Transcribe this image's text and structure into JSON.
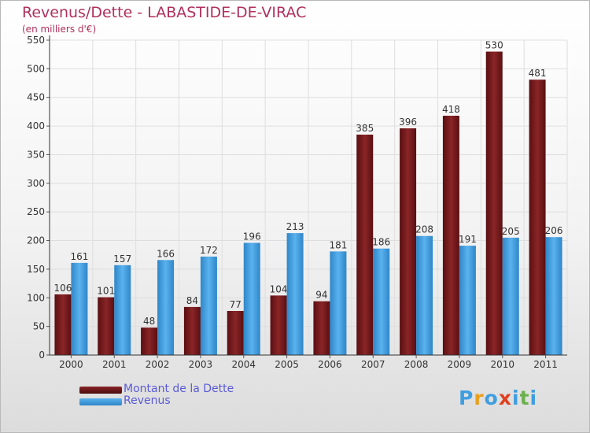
{
  "chart_data": {
    "type": "bar",
    "title": "Revenus/Dette - LABASTIDE-DE-VIRAC",
    "subtitle": "(en milliers d'€)",
    "categories": [
      "2000",
      "2001",
      "2002",
      "2003",
      "2004",
      "2005",
      "2006",
      "2007",
      "2008",
      "2009",
      "2010",
      "2011"
    ],
    "series": [
      {
        "name": "Montant de la Dette",
        "color": "#7a1a1c",
        "values": [
          106,
          101,
          48,
          84,
          77,
          104,
          94,
          385,
          396,
          418,
          530,
          481
        ]
      },
      {
        "name": "Revenus",
        "color": "#3f9ee0",
        "values": [
          161,
          157,
          166,
          172,
          196,
          213,
          181,
          186,
          208,
          191,
          205,
          206
        ]
      }
    ],
    "ylim": [
      0,
      550
    ],
    "yticks": [
      0,
      50,
      100,
      150,
      200,
      250,
      300,
      350,
      400,
      450,
      500,
      550
    ],
    "grid": true,
    "legend_position": "bottom-left",
    "xlabel": "",
    "ylabel": ""
  },
  "logo": {
    "text": "Proxiti",
    "letter_colors": [
      "#3f9ee0",
      "#e8a020",
      "#3f9ee0",
      "#e04020",
      "#3f9ee0",
      "#6ab04c",
      "#3f9ee0"
    ]
  }
}
